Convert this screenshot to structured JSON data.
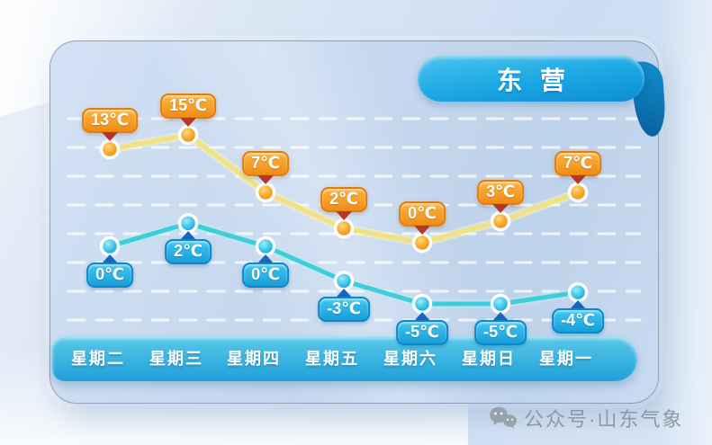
{
  "header": {
    "city": "东营"
  },
  "chart_data": {
    "type": "line",
    "title": "东营",
    "categories": [
      "星期二",
      "星期三",
      "星期四",
      "星期五",
      "星期六",
      "星期日",
      "星期一"
    ],
    "series": [
      {
        "id": "high",
        "unit": "℃",
        "values": [
          13,
          15,
          7,
          2,
          0,
          3,
          7
        ],
        "labels": [
          "13℃",
          "15℃",
          "7℃",
          "2℃",
          "0℃",
          "3℃",
          "7℃"
        ],
        "line_color": "#f1e183",
        "badge_style": "orange"
      },
      {
        "id": "low",
        "unit": "℃",
        "values": [
          0,
          2,
          0,
          -3,
          -5,
          -5,
          -4
        ],
        "labels": [
          "0℃",
          "2℃",
          "0℃",
          "-3℃",
          "-5℃",
          "-5℃",
          "-4℃"
        ],
        "line_color": "#3fced9",
        "badge_style": "blue"
      }
    ],
    "grid": "horizontal-dashed",
    "legend_position": "none"
  },
  "watermark": {
    "icon": "wechat-icon",
    "label": "公众号·山东气象"
  },
  "colors": {
    "high_line": "#f1e183",
    "high_line_halo": "#faf3b8",
    "low_line": "#3fced9",
    "low_line_halo": "#b9ecf1",
    "high_badge_top": "#fbb440",
    "high_badge_bottom": "#ef8d14",
    "high_badge_border": "#e27d0e",
    "high_arrow": "#b5362a",
    "low_badge_top": "#43c7ee",
    "low_badge_bottom": "#169fdb",
    "low_badge_border": "#0f86c6",
    "low_arrow": "#1767c0",
    "ribbon_blue": "#14a0dd",
    "daybar_top": "#5ac9ea",
    "daybar_bottom": "#1f9fd8",
    "watermark_gray": "#8e98a3",
    "gridline": "#ffffff"
  }
}
